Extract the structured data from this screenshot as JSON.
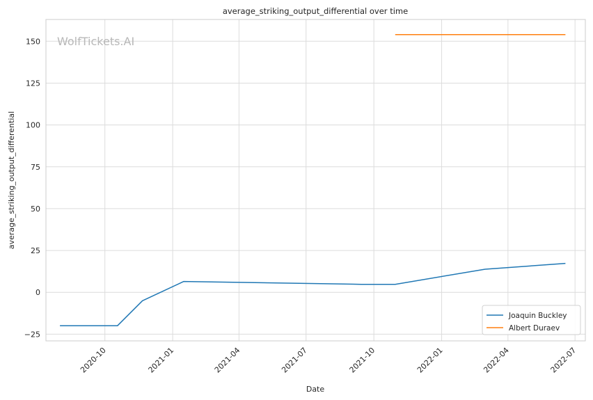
{
  "chart_data": {
    "type": "line",
    "title": "average_striking_output_differential over time",
    "xlabel": "Date",
    "ylabel": "average_striking_output_differential",
    "watermark": "WolfTickets.AI",
    "x_ticks": [
      "2020-10",
      "2021-01",
      "2021-04",
      "2021-07",
      "2021-10",
      "2022-01",
      "2022-04",
      "2022-07"
    ],
    "y_ticks": [
      -25,
      0,
      25,
      50,
      75,
      100,
      125,
      150
    ],
    "xlim": [
      "2020-07-13",
      "2022-07-15"
    ],
    "ylim": [
      -29,
      163
    ],
    "grid": true,
    "legend_position": "bottom-right",
    "series": [
      {
        "name": "Joaquin Buckley",
        "color": "#1f77b4",
        "points": [
          {
            "x": "2020-08-01",
            "y": -20
          },
          {
            "x": "2020-10-18",
            "y": -20
          },
          {
            "x": "2020-11-21",
            "y": -5
          },
          {
            "x": "2021-01-16",
            "y": 6.5
          },
          {
            "x": "2021-09-14",
            "y": 4.8
          },
          {
            "x": "2021-10-30",
            "y": 4.8
          },
          {
            "x": "2022-03-01",
            "y": 13.8
          },
          {
            "x": "2022-06-18",
            "y": 17.3
          }
        ]
      },
      {
        "name": "Albert Duraev",
        "color": "#ff7f0e",
        "points": [
          {
            "x": "2021-10-30",
            "y": 154
          },
          {
            "x": "2022-06-18",
            "y": 154
          }
        ]
      }
    ]
  }
}
